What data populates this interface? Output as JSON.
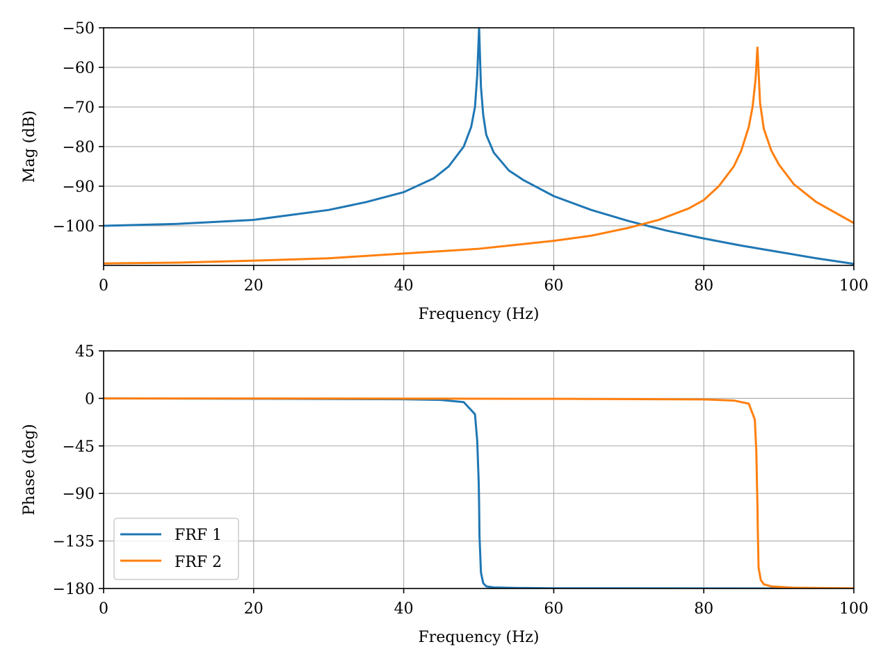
{
  "chart_data": [
    {
      "type": "line",
      "xlabel": "Frequency (Hz)",
      "ylabel": "Mag (dB)",
      "xlim": [
        0,
        100
      ],
      "ylim": [
        -110,
        -50
      ],
      "xticks": [
        0,
        20,
        40,
        60,
        80,
        100
      ],
      "xtick_labels": [
        "0",
        "20",
        "40",
        "60",
        "80",
        "100"
      ],
      "yticks": [
        -50,
        -60,
        -70,
        -80,
        -90,
        -100
      ],
      "ytick_labels": [
        "−50",
        "−60",
        "−70",
        "−80",
        "−90",
        "−100"
      ],
      "grid": true,
      "series": [
        {
          "name": "FRF 1",
          "color": "#1f77b4",
          "x": [
            0,
            10,
            20,
            30,
            35,
            40,
            44,
            46,
            48,
            49,
            49.5,
            49.8,
            50.05,
            50.3,
            50.6,
            51,
            52,
            54,
            56,
            60,
            65,
            70,
            75,
            80,
            85,
            90,
            95,
            100
          ],
          "y": [
            -100.0,
            -99.5,
            -98.5,
            -96.0,
            -94.0,
            -91.5,
            -88.0,
            -85.0,
            -80.0,
            -75.0,
            -70.0,
            -62.0,
            -50.0,
            -65.0,
            -72.0,
            -77.0,
            -81.5,
            -86.0,
            -88.5,
            -92.5,
            -96.0,
            -98.8,
            -101.2,
            -103.2,
            -105.0,
            -106.6,
            -108.2,
            -109.6
          ]
        },
        {
          "name": "FRF 2",
          "color": "#ff7f0e",
          "x": [
            0,
            10,
            20,
            30,
            40,
            50,
            60,
            65,
            70,
            74,
            78,
            80,
            82,
            84,
            85,
            86,
            86.5,
            86.9,
            87.15,
            87.5,
            88,
            89,
            90,
            92,
            95,
            100
          ],
          "y": [
            -109.5,
            -109.3,
            -108.8,
            -108.2,
            -107.0,
            -105.8,
            -103.8,
            -102.5,
            -100.5,
            -98.5,
            -95.6,
            -93.5,
            -90.0,
            -85.0,
            -81.0,
            -75.0,
            -70.0,
            -63.0,
            -55.0,
            -69.0,
            -75.5,
            -81.0,
            -84.5,
            -89.5,
            -94.0,
            -99.3
          ]
        }
      ]
    },
    {
      "type": "line",
      "xlabel": "Frequency (Hz)",
      "ylabel": "Phase (deg)",
      "xlim": [
        0,
        100
      ],
      "ylim": [
        -180,
        45
      ],
      "xticks": [
        0,
        20,
        40,
        60,
        80,
        100
      ],
      "xtick_labels": [
        "0",
        "20",
        "40",
        "60",
        "80",
        "100"
      ],
      "yticks": [
        45,
        0,
        -45,
        -90,
        -135,
        -180
      ],
      "ytick_labels": [
        "45",
        "0",
        "−45",
        "−90",
        "−135",
        "−180"
      ],
      "grid": true,
      "legend": "lower-left",
      "series": [
        {
          "name": "FRF 1",
          "color": "#1f77b4",
          "x": [
            0,
            20,
            40,
            45,
            48,
            49.5,
            49.8,
            50.0,
            50.05,
            50.1,
            50.3,
            50.6,
            51,
            52,
            55,
            60,
            80,
            100
          ],
          "y": [
            0,
            -0.3,
            -0.8,
            -1.5,
            -3.5,
            -15,
            -40,
            -80,
            -100,
            -130,
            -165,
            -175,
            -178,
            -179,
            -179.5,
            -179.8,
            -179.9,
            -180
          ]
        },
        {
          "name": "FRF 2",
          "color": "#ff7f0e",
          "x": [
            0,
            20,
            40,
            60,
            80,
            84,
            86,
            86.8,
            87.0,
            87.1,
            87.15,
            87.2,
            87.3,
            87.6,
            88,
            89,
            92,
            100
          ],
          "y": [
            0,
            -0.1,
            -0.2,
            -0.4,
            -1.0,
            -2.0,
            -5.0,
            -20,
            -50,
            -85,
            -100,
            -125,
            -160,
            -172,
            -176,
            -178,
            -179.3,
            -179.8
          ]
        }
      ]
    }
  ]
}
